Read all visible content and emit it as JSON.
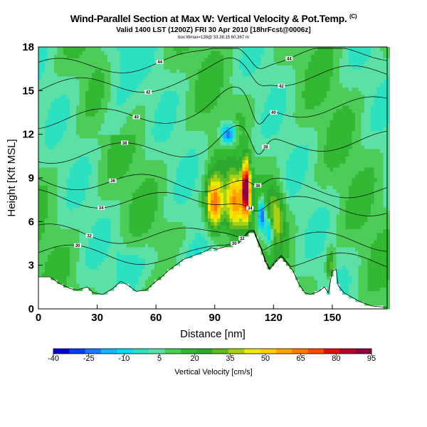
{
  "title": "Wind-Parallel Section at Max W: Vertical Velocity & Pot.Temp.",
  "copyright": "(C)",
  "subtitle": "Valid 1400 LST (1200Z) FRI 30 Apr 2010 [18hrFcst@0006z]",
  "subsubtitle": "box:Wmax=138@ 33.38,15 60,367 m",
  "chart_data": {
    "type": "heatmap",
    "xlabel": "Distance [nm]",
    "ylabel": "Height [Kft MSL]",
    "xlim": [
      0,
      178
    ],
    "ylim": [
      0,
      18
    ],
    "xticks": [
      0,
      30,
      60,
      90,
      120,
      150
    ],
    "yticks": [
      0,
      3,
      6,
      9,
      12,
      15,
      18
    ],
    "terrain_top_kft": [
      [
        0,
        2.2
      ],
      [
        6,
        2.2
      ],
      [
        10,
        1.8
      ],
      [
        16,
        1.4
      ],
      [
        20,
        1.3
      ],
      [
        25,
        1.5
      ],
      [
        28,
        1.1
      ],
      [
        33,
        1.0
      ],
      [
        38,
        1.4
      ],
      [
        42,
        1.9
      ],
      [
        46,
        1.6
      ],
      [
        50,
        1.2
      ],
      [
        55,
        1.3
      ],
      [
        60,
        1.9
      ],
      [
        63,
        2.2
      ],
      [
        66,
        2.6
      ],
      [
        70,
        3.0
      ],
      [
        74,
        3.4
      ],
      [
        78,
        3.6
      ],
      [
        82,
        3.8
      ],
      [
        86,
        4.0
      ],
      [
        88,
        4.2
      ],
      [
        91,
        4.1
      ],
      [
        96,
        4.3
      ],
      [
        100,
        4.4
      ],
      [
        103,
        4.6
      ],
      [
        105,
        4.9
      ],
      [
        107,
        5.2
      ],
      [
        108,
        5.3
      ],
      [
        110,
        5.3
      ],
      [
        112,
        4.6
      ],
      [
        114,
        4.0
      ],
      [
        116,
        3.2
      ],
      [
        118,
        2.7
      ],
      [
        121,
        3.2
      ],
      [
        124,
        3.6
      ],
      [
        127,
        3.1
      ],
      [
        130,
        2.6
      ],
      [
        133,
        1.7
      ],
      [
        136,
        1.1
      ],
      [
        139,
        1.0
      ],
      [
        143,
        1.2
      ],
      [
        146,
        1.5
      ],
      [
        148,
        1.1
      ],
      [
        150,
        2.6
      ],
      [
        152,
        2.7
      ],
      [
        153,
        1.6
      ],
      [
        156,
        1.1
      ],
      [
        160,
        0.8
      ],
      [
        164,
        0.5
      ],
      [
        170,
        0.2
      ],
      [
        178,
        0.1
      ]
    ],
    "updrafts": [
      {
        "x": 90,
        "height": 7.2,
        "peak": 72
      },
      {
        "x": 100,
        "height": 7.5,
        "peak": 62
      },
      {
        "x": 106,
        "height": 8.3,
        "peak": 90
      },
      {
        "x": 121,
        "height": 6.5,
        "peak": 45
      },
      {
        "x": 149,
        "height": 3.0,
        "peak": 40
      }
    ],
    "downdrafts": [
      {
        "x": 97,
        "height": 12.0,
        "peak": -32
      },
      {
        "x": 114,
        "height": 6.4,
        "peak": -35
      },
      {
        "x": 118,
        "height": 5.3,
        "peak": -30
      }
    ],
    "isentropes": [
      {
        "label": "30",
        "base": 3.7
      },
      {
        "label": "32",
        "base": 5.1
      },
      {
        "label": "34",
        "base": 7.5
      },
      {
        "label": "36",
        "base": 8.7
      },
      {
        "label": "38",
        "base": 10.8
      },
      {
        "label": "40",
        "base": 13.2
      },
      {
        "label": "42",
        "base": 15.4
      },
      {
        "label": "44",
        "base": 16.8
      }
    ],
    "colorbar": {
      "label": "Vertical Velocity [cm/s]",
      "ticks": [
        -40,
        -25,
        -10,
        5,
        20,
        35,
        50,
        65,
        80,
        95
      ],
      "colors": [
        "#0000cc",
        "#0a3cf0",
        "#1a78ff",
        "#19b4ff",
        "#00dcf0",
        "#2de0c0",
        "#5ce0a6",
        "#4ecc5a",
        "#33b833",
        "#2fa830",
        "#60bb20",
        "#a8d018",
        "#ecec00",
        "#ffd000",
        "#ffa500",
        "#ff7a00",
        "#ff4800",
        "#e01010",
        "#b4002a",
        "#8c0040"
      ]
    }
  }
}
